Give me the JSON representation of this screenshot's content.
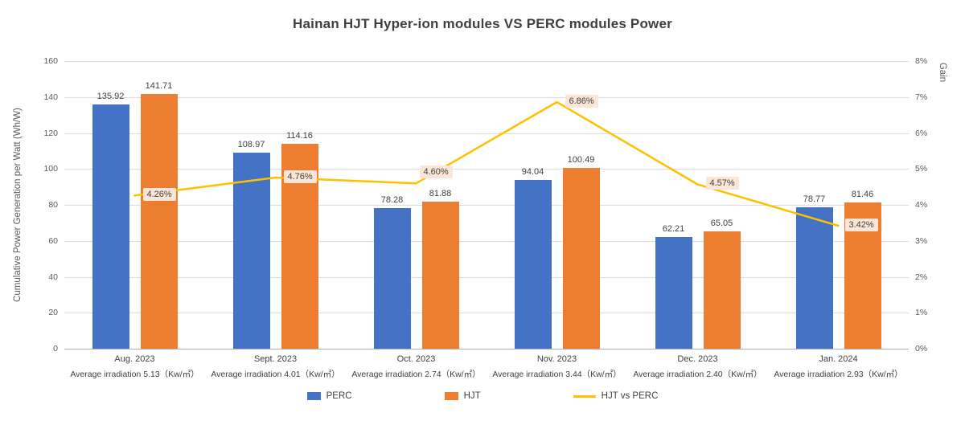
{
  "chart_data": {
    "type": "bar",
    "title": "Hainan HJT Hyper-ion modules VS PERC modules Power",
    "ylabel": "Cumulative Power Generation per Watt (Wh/W)",
    "y2label": "Gain",
    "ylim": [
      0,
      160
    ],
    "ytick_step": 20,
    "y2lim": [
      0,
      8
    ],
    "y2tick_step": 1,
    "y2tick_suffix": "%",
    "grid": true,
    "legend_position": "bottom",
    "categories": [
      "Aug. 2023",
      "Sept. 2023",
      "Oct. 2023",
      "Nov. 2023",
      "Dec. 2023",
      "Jan. 2024"
    ],
    "category_sublabels": [
      "Average irradiation 5.13（Kw/㎡）",
      "Average irradiation 4.01（Kw/㎡）",
      "Average irradiation 2.74（Kw/㎡）",
      "Average irradiation 3.44（Kw/㎡）",
      "Average irradiation 2.40（Kw/㎡）",
      "Average irradiation 2.93（Kw/㎡）"
    ],
    "series": [
      {
        "name": "PERC",
        "type": "bar",
        "axis": "left",
        "color": "#4472C4",
        "values": [
          135.92,
          108.97,
          78.28,
          94.04,
          62.21,
          78.77
        ]
      },
      {
        "name": "HJT",
        "type": "bar",
        "axis": "left",
        "color": "#ED7D31",
        "values": [
          141.71,
          114.16,
          81.88,
          100.49,
          65.05,
          81.46
        ]
      },
      {
        "name": "HJT vs PERC",
        "type": "line",
        "axis": "right",
        "color": "#FFC000",
        "values": [
          4.26,
          4.76,
          4.6,
          6.86,
          4.57,
          3.42
        ],
        "labels": [
          "4.26%",
          "4.76%",
          "4.60%",
          "6.86%",
          "4.57%",
          "3.42%"
        ],
        "label_bg": "#FBE5D6"
      }
    ]
  }
}
